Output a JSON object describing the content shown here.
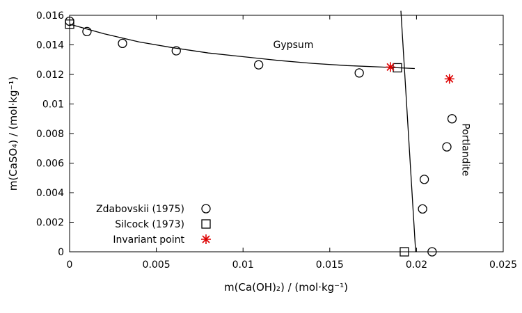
{
  "chart_data": {
    "type": "scatter",
    "xlabel": "m(Ca(OH)₂) / (mol·kg⁻¹)",
    "ylabel": "m(CaSO₄) / (mol·kg⁻¹)",
    "xlim": [
      0,
      0.025
    ],
    "ylim": [
      0,
      0.016
    ],
    "x_ticks": [
      0,
      0.005,
      0.01,
      0.015,
      0.02,
      0.025
    ],
    "x_tick_labels": [
      "0",
      "0.005",
      "0.01",
      "0.015",
      "0.02",
      "0.025"
    ],
    "y_ticks": [
      0,
      0.002,
      0.004,
      0.006,
      0.008,
      0.01,
      0.012,
      0.014,
      0.016
    ],
    "y_tick_labels": [
      "0",
      "0.002",
      "0.004",
      "0.006",
      "0.008",
      "0.01",
      "0.012",
      "0.014",
      "0.016"
    ],
    "grid": false,
    "legend_position": "bottom-left",
    "series": [
      {
        "name": "Zdabovskii (1975)",
        "marker": "circle",
        "color": "#000000",
        "points": [
          [
            0,
            0.0156
          ],
          [
            0.001,
            0.0149
          ],
          [
            0.00305,
            0.0141
          ],
          [
            0.00615,
            0.0136
          ],
          [
            0.0109,
            0.01265
          ],
          [
            0.0167,
            0.0121
          ],
          [
            0.02205,
            0.009
          ],
          [
            0.02175,
            0.0071
          ],
          [
            0.02045,
            0.0049
          ],
          [
            0.02035,
            0.0029
          ],
          [
            0.0209,
            0.0
          ]
        ]
      },
      {
        "name": "Silcock (1973)",
        "marker": "square",
        "color": "#000000",
        "points": [
          [
            0,
            0.0154
          ],
          [
            0.0189,
            0.01245
          ],
          [
            0.0193,
            0.0
          ]
        ]
      },
      {
        "name": "Invariant point",
        "marker": "asterisk",
        "color": "#dd0000",
        "points": [
          [
            0.0185,
            0.0125
          ],
          [
            0.0219,
            0.0117
          ]
        ]
      }
    ],
    "curves": [
      {
        "label": "Gypsum",
        "points": [
          [
            0,
            0.0154
          ],
          [
            0.002,
            0.01475
          ],
          [
            0.004,
            0.0142
          ],
          [
            0.006,
            0.0138
          ],
          [
            0.008,
            0.01345
          ],
          [
            0.01,
            0.0132
          ],
          [
            0.012,
            0.01295
          ],
          [
            0.014,
            0.01275
          ],
          [
            0.016,
            0.0126
          ],
          [
            0.018,
            0.0125
          ],
          [
            0.0199,
            0.0124
          ]
        ]
      },
      {
        "label": "Portlandite",
        "points": [
          [
            0.0191,
            0.0163
          ],
          [
            0.01995,
            0.0
          ]
        ]
      }
    ],
    "annotations": [
      {
        "text": "Gypsum",
        "x": 0.0129,
        "y": 0.0138
      },
      {
        "text": "Portlandite",
        "x": 0.02265,
        "y": 0.0069,
        "rotation": 90
      }
    ]
  }
}
